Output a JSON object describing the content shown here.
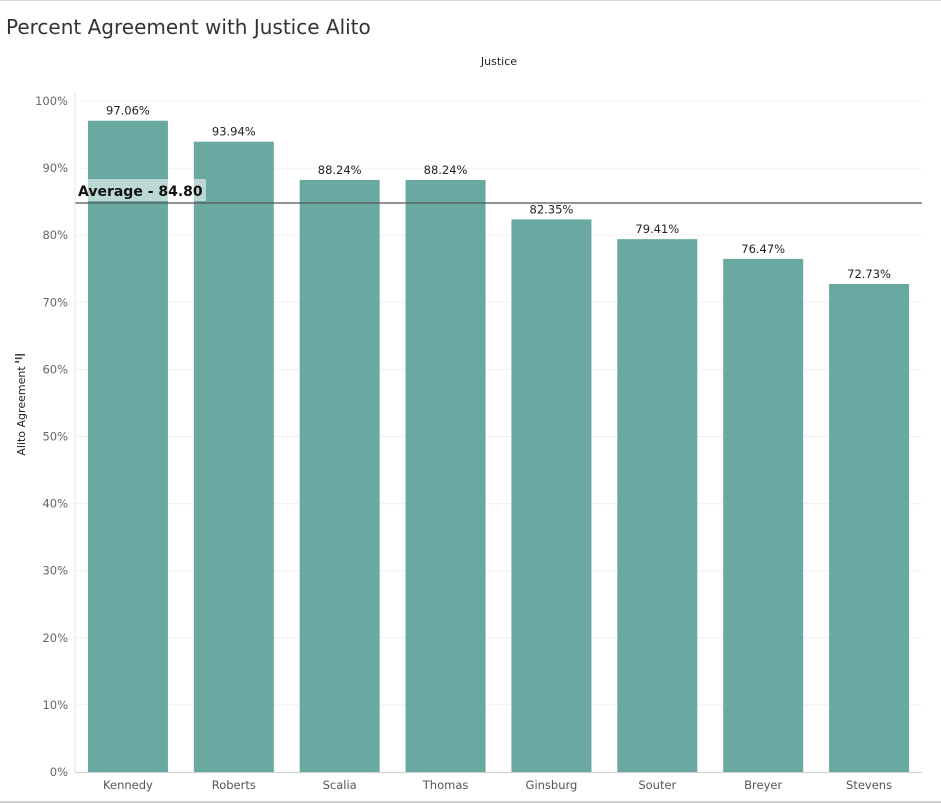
{
  "chart_data": {
    "type": "bar",
    "title": "Percent Agreement with Justice Alito",
    "column_header": "Justice",
    "ylabel": "Alito Agreement",
    "xlabel": "",
    "categories": [
      "Kennedy",
      "Roberts",
      "Scalia",
      "Thomas",
      "Ginsburg",
      "Souter",
      "Breyer",
      "Stevens"
    ],
    "values": [
      97.06,
      93.94,
      88.24,
      88.24,
      82.35,
      79.41,
      76.47,
      72.73
    ],
    "value_labels": [
      "97.06%",
      "93.94%",
      "88.24%",
      "88.24%",
      "82.35%",
      "79.41%",
      "76.47%",
      "72.73%"
    ],
    "ylim": [
      0,
      100
    ],
    "yticks": [
      0,
      10,
      20,
      30,
      40,
      50,
      60,
      70,
      80,
      90,
      100
    ],
    "ytick_labels": [
      "0%",
      "10%",
      "20%",
      "30%",
      "40%",
      "50%",
      "60%",
      "70%",
      "80%",
      "90%",
      "100%"
    ],
    "reference_line": {
      "value": 84.8,
      "label": "Average - 84.80"
    },
    "grid": true,
    "bar_color": "#69a9a2",
    "reference_line_color": "#555555",
    "sort_icon": "sort-descending-icon"
  }
}
